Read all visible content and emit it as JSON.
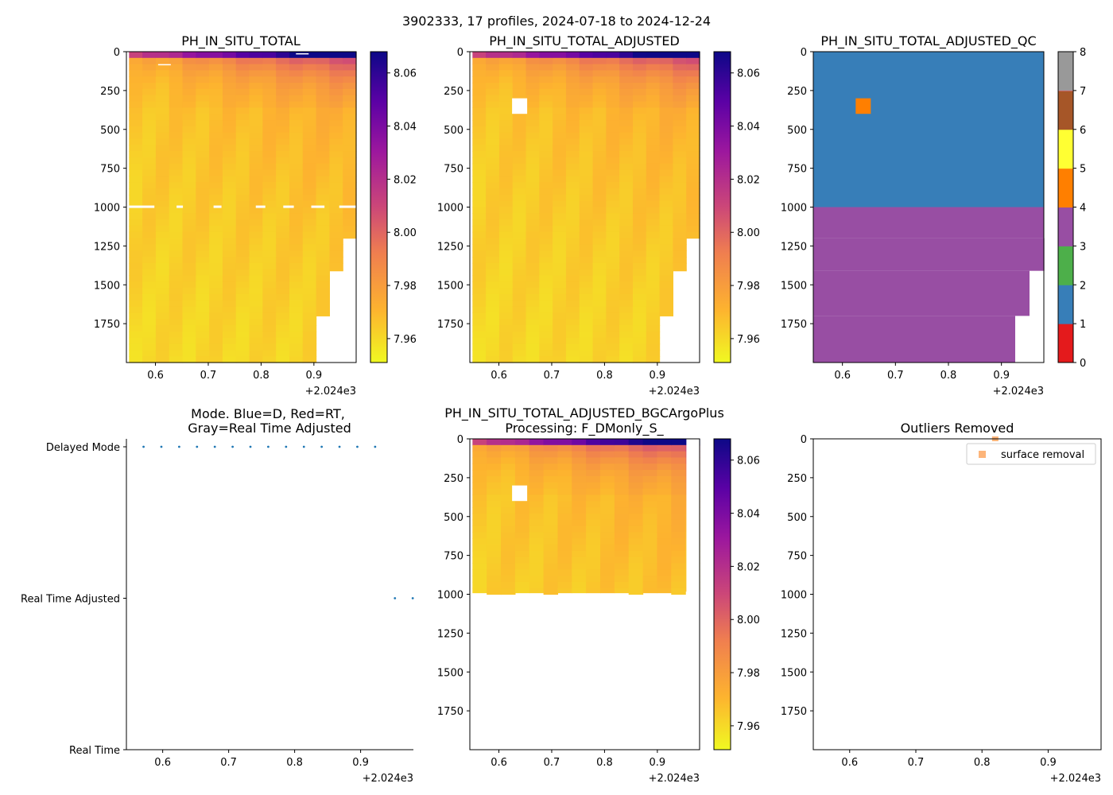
{
  "suptitle": "3902333, 17 profiles, 2024-07-18 to 2024-12-24",
  "offset_label": "+2.024e3",
  "x_ticks": [
    "0.6",
    "0.7",
    "0.8",
    "0.9"
  ],
  "x_tick_values": [
    0.6,
    0.7,
    0.8,
    0.9
  ],
  "xlim": [
    0.545,
    0.98
  ],
  "depth_ticks": [
    "0",
    "250",
    "500",
    "750",
    "1000",
    "1250",
    "1500",
    "1750"
  ],
  "depth_tick_values": [
    0,
    250,
    500,
    750,
    1000,
    1250,
    1500,
    1750
  ],
  "ylim": [
    0,
    2000
  ],
  "colorbar": {
    "ticks": [
      "7.96",
      "7.98",
      "8.00",
      "8.02",
      "8.04",
      "8.06"
    ],
    "tick_values": [
      7.96,
      7.98,
      8.0,
      8.02,
      8.04,
      8.06
    ],
    "range": [
      7.951,
      8.068
    ],
    "stops": [
      "#f0f921",
      "#fdb32f",
      "#f07f4f",
      "#cc4778",
      "#9c179e",
      "#5b01a5",
      "#0d0887"
    ]
  },
  "qc_colorbar": {
    "ticks": [
      "0",
      "1",
      "2",
      "3",
      "4",
      "5",
      "6",
      "7",
      "8"
    ],
    "colors": [
      "#e41a1c",
      "#377eb8",
      "#4daf4a",
      "#984ea3",
      "#ff7f00",
      "#ffff33",
      "#a65628",
      "#f781bf",
      "#999999"
    ]
  },
  "chart_data": [
    {
      "type": "heatmap",
      "title": "PH_IN_SITU_TOTAL",
      "x_cols": 17,
      "max_depth_per_col": [
        2000,
        2000,
        2000,
        2000,
        2000,
        2000,
        2000,
        2000,
        2000,
        2000,
        2000,
        2000,
        2000,
        2000,
        1700,
        1410,
        1200
      ],
      "gaps": [
        {
          "depth": 990,
          "x_from": 0.55,
          "x_to": 0.98
        }
      ],
      "colorbar_range": [
        7.951,
        8.068
      ]
    },
    {
      "type": "heatmap",
      "title": "PH_IN_SITU_TOTAL_ADJUSTED",
      "x_cols": 17,
      "max_depth_per_col": [
        2000,
        2000,
        2000,
        2000,
        2000,
        2000,
        2000,
        2000,
        2000,
        2000,
        2000,
        2000,
        2000,
        2000,
        1700,
        1410,
        1200
      ],
      "missing_box": {
        "x": 0.64,
        "depth_from": 300,
        "depth_to": 400
      },
      "colorbar_range": [
        7.951,
        8.068
      ]
    },
    {
      "type": "heatmap",
      "title": "PH_IN_SITU_TOTAL_ADJUSTED_QC",
      "qc_regions": [
        {
          "flag": 1,
          "depth_from": 0,
          "depth_to": 1000
        },
        {
          "flag": 3,
          "depth_from": 1000,
          "depth_to": 2000
        },
        {
          "flag": 4,
          "x": 0.64,
          "depth_from": 300,
          "depth_to": 400
        }
      ],
      "colorbar_range": [
        0,
        8
      ]
    },
    {
      "type": "scatter",
      "title_line1": "Mode. Blue=D, Red=RT,",
      "title_line2": "Gray=Real Time Adjusted",
      "y_categories": [
        "Delayed Mode",
        "Real Time Adjusted",
        "Real Time"
      ],
      "y_category_values": [
        2,
        1,
        0
      ],
      "points": [
        {
          "x": 0.571,
          "y": 2
        },
        {
          "x": 0.598,
          "y": 2
        },
        {
          "x": 0.625,
          "y": 2
        },
        {
          "x": 0.652,
          "y": 2
        },
        {
          "x": 0.679,
          "y": 2
        },
        {
          "x": 0.706,
          "y": 2
        },
        {
          "x": 0.733,
          "y": 2
        },
        {
          "x": 0.76,
          "y": 2
        },
        {
          "x": 0.787,
          "y": 2
        },
        {
          "x": 0.814,
          "y": 2
        },
        {
          "x": 0.841,
          "y": 2
        },
        {
          "x": 0.868,
          "y": 2
        },
        {
          "x": 0.895,
          "y": 2
        },
        {
          "x": 0.922,
          "y": 2
        },
        {
          "x": 0.952,
          "y": 1
        },
        {
          "x": 0.979,
          "y": 1
        }
      ]
    },
    {
      "type": "heatmap",
      "title_line1": "PH_IN_SITU_TOTAL_ADJUSTED_BGCArgoPlus",
      "title_line2": "Processing: F_DMonly_S_",
      "x_cols": 16,
      "max_depth_per_col": [
        990,
        1000,
        1000,
        990,
        990,
        1000,
        990,
        990,
        990,
        990,
        990,
        1000,
        990,
        990,
        1000,
        980
      ],
      "missing_box": {
        "x": 0.64,
        "depth_from": 300,
        "depth_to": 400
      },
      "colorbar_range": [
        7.951,
        8.068
      ]
    },
    {
      "type": "scatter",
      "title": "Outliers Removed",
      "legend": [
        {
          "label": "surface removal",
          "color": "#fdb57a"
        }
      ],
      "legend_position": "top-right",
      "points": [
        {
          "x": 0.82,
          "y": 0
        }
      ]
    }
  ]
}
